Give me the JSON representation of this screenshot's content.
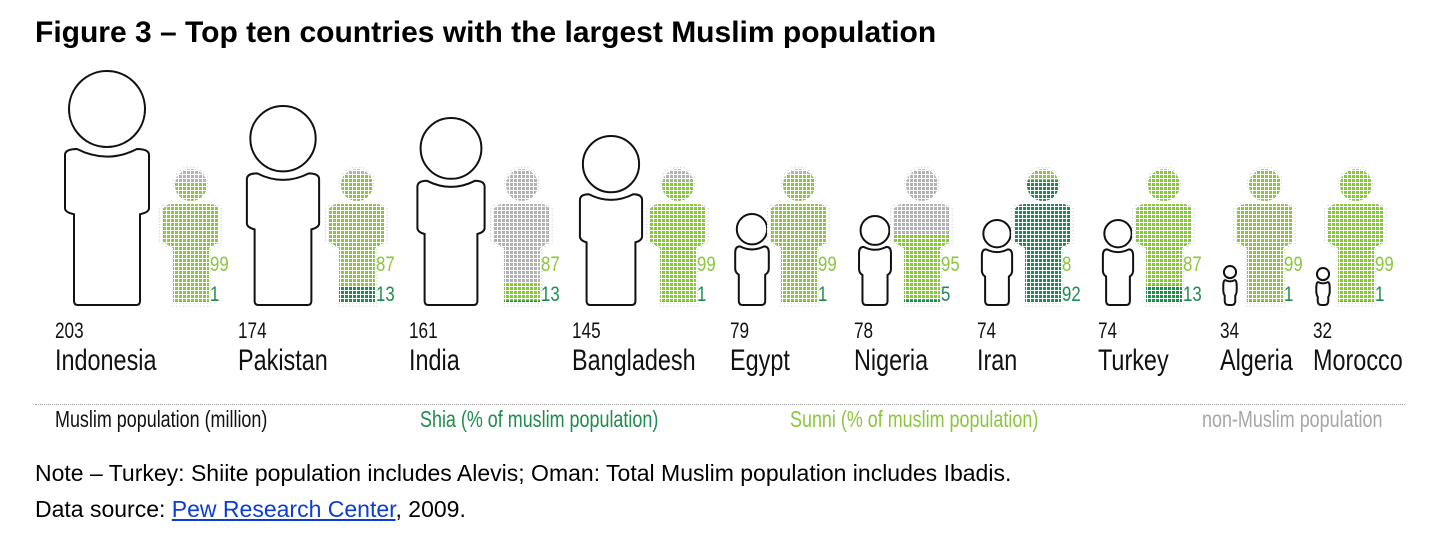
{
  "header": {
    "title": "Figure 3 – Top ten countries with the largest Muslim population"
  },
  "legend": {
    "muslim_population": "Muslim population (million)",
    "shia": "Shia (% of muslim population)",
    "sunni": "Sunni (% of muslim population)",
    "non_muslim": "non-Muslim population"
  },
  "colors": {
    "sunni": "#8cc63f",
    "shia": "#1e8c4e",
    "non_muslim": "#b3b3b3",
    "legend_muslim": "#111111",
    "legend_shia": "#1e8c4e",
    "legend_sunni": "#8cc63f",
    "legend_non_muslim": "#a6a6a6"
  },
  "notes": {
    "note": "Note – Turkey: Shiite population includes Alevis; Oman: Total Muslim population includes Ibadis.",
    "source_prefix": "Data source: ",
    "source_link": "Pew Research Center",
    "source_suffix": ", 2009."
  },
  "countries": [
    {
      "name": "Indonesia",
      "population": "203",
      "sunni": "99",
      "shia": "1"
    },
    {
      "name": "Pakistan",
      "population": "174",
      "sunni": "87",
      "shia": "13"
    },
    {
      "name": "India",
      "population": "161",
      "sunni": "87",
      "shia": "13"
    },
    {
      "name": "Bangladesh",
      "population": "145",
      "sunni": "99",
      "shia": "1"
    },
    {
      "name": "Egypt",
      "population": "79",
      "sunni": "99",
      "shia": "1"
    },
    {
      "name": "Nigeria",
      "population": "78",
      "sunni": "95",
      "shia": "5"
    },
    {
      "name": "Iran",
      "population": "74",
      "sunni": "8",
      "shia": "92"
    },
    {
      "name": "Turkey",
      "population": "74",
      "sunni": "87",
      "shia": "13"
    },
    {
      "name": "Algeria",
      "population": "34",
      "sunni": "99",
      "shia": "1"
    },
    {
      "name": "Morocco",
      "population": "32",
      "sunni": "99",
      "shia": "1"
    }
  ],
  "chart_data": {
    "type": "pictogram",
    "title": "Figure 3 – Top ten countries with the largest Muslim population",
    "categories": [
      "Indonesia",
      "Pakistan",
      "India",
      "Bangladesh",
      "Egypt",
      "Nigeria",
      "Iran",
      "Turkey",
      "Algeria",
      "Morocco"
    ],
    "series": [
      {
        "name": "Muslim population (million)",
        "values": [
          203,
          174,
          161,
          145,
          79,
          78,
          74,
          74,
          34,
          32
        ]
      },
      {
        "name": "Sunni (% of muslim population)",
        "values": [
          99,
          87,
          87,
          99,
          99,
          95,
          8,
          87,
          99,
          99
        ]
      },
      {
        "name": "Shia (% of muslim population)",
        "values": [
          1,
          13,
          13,
          1,
          1,
          5,
          92,
          13,
          1,
          1
        ]
      }
    ],
    "non_muslim_share_of_country_figure_estimate_pct": [
      12,
      5,
      86,
      10,
      5,
      50,
      2,
      2,
      2,
      2
    ],
    "legend": [
      "Muslim population (million)",
      "Shia (% of muslim population)",
      "Sunni (% of muslim population)",
      "non-Muslim population"
    ],
    "legend_position": "bottom",
    "grid": false,
    "note": "Note – Turkey: Shiite population includes Alevis; Oman: Total Muslim population includes Ibadis.",
    "source": "Data source: Pew Research Center, 2009."
  }
}
